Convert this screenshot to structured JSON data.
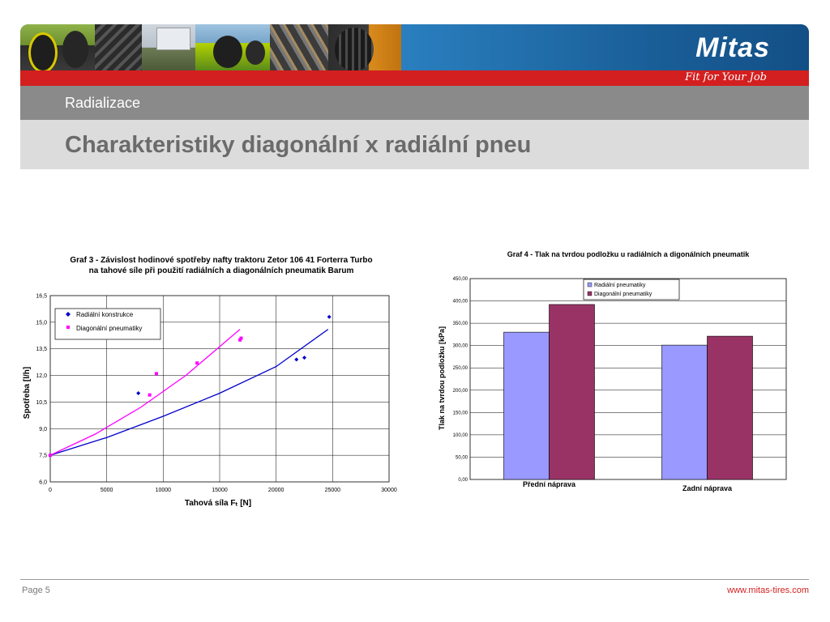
{
  "header": {
    "brand": "Mitas",
    "tagline": "Fit for Your Job",
    "section": "Radializace",
    "title": "Charakteristiky diagonální x radiální pneu"
  },
  "footer": {
    "page": "Page 5",
    "url": "www.mitas-tires.com"
  },
  "colors": {
    "red": "#d31f1f",
    "blue_series": "#0000cc",
    "magenta_series": "#ff00ff",
    "bar_radial": "#9999ff",
    "bar_diagonal": "#993366"
  },
  "chart_data": [
    {
      "type": "scatter",
      "title_lines": [
        "Graf 3 - Závislost hodinové spotřeby nafty traktoru Zetor 106 41 Forterra Turbo",
        "na tahové síle při použití radiálních a diagonálních pneumatik Barum"
      ],
      "xlabel": "Tahová síla Fₜ [N]",
      "ylabel": "Spotřeba [l/h]",
      "xlim": [
        0,
        30000
      ],
      "ylim": [
        6.0,
        16.5
      ],
      "xticks": [
        "0",
        "5000",
        "10000",
        "15000",
        "20000",
        "25000",
        "30000"
      ],
      "yticks": [
        "6,0",
        "7,5",
        "9,0",
        "10,5",
        "12,0",
        "13,5",
        "15,0",
        "16,5"
      ],
      "grid": true,
      "legend_position": "top-left",
      "series": [
        {
          "name": "Radiální konstrukce",
          "marker": "diamond",
          "color": "#0000cc",
          "points": [
            [
              0,
              7.5
            ],
            [
              7800,
              11.0
            ],
            [
              21800,
              12.9
            ],
            [
              22500,
              13.0
            ],
            [
              24700,
              15.3
            ]
          ],
          "trend": [
            [
              0,
              7.5
            ],
            [
              5000,
              8.5
            ],
            [
              10000,
              9.7
            ],
            [
              15000,
              11.0
            ],
            [
              20000,
              12.5
            ],
            [
              24600,
              14.6
            ]
          ]
        },
        {
          "name": "Diagonální pneumatiky",
          "marker": "square",
          "color": "#ff00ff",
          "points": [
            [
              0,
              7.5
            ],
            [
              8800,
              10.9
            ],
            [
              9400,
              12.1
            ],
            [
              13000,
              12.7
            ],
            [
              16800,
              14.0
            ],
            [
              16900,
              14.1
            ]
          ],
          "trend": [
            [
              0,
              7.5
            ],
            [
              4000,
              8.7
            ],
            [
              8000,
              10.2
            ],
            [
              12000,
              12.0
            ],
            [
              16800,
              14.6
            ]
          ]
        }
      ]
    },
    {
      "type": "bar",
      "title": "Graf 4 - Tlak na tvrdou podložku u radiálních a digonálních pneumatik",
      "ylabel": "Tlak na tvrdou podložku [kPa]",
      "xlabel": "",
      "categories": [
        "Přední náprava",
        "Zadní náprava"
      ],
      "ylim": [
        0,
        450
      ],
      "yticks": [
        "0,00",
        "50,00",
        "100,00",
        "150,00",
        "200,00",
        "250,00",
        "300,00",
        "350,00",
        "400,00",
        "450,00"
      ],
      "grid": true,
      "legend_position": "top-center",
      "series": [
        {
          "name": "Radiální pneumatiky",
          "color": "#9999ff",
          "values": [
            330,
            301
          ]
        },
        {
          "name": "Diagonální  pneumatiky",
          "color": "#993366",
          "values": [
            392,
            321
          ]
        }
      ]
    }
  ]
}
